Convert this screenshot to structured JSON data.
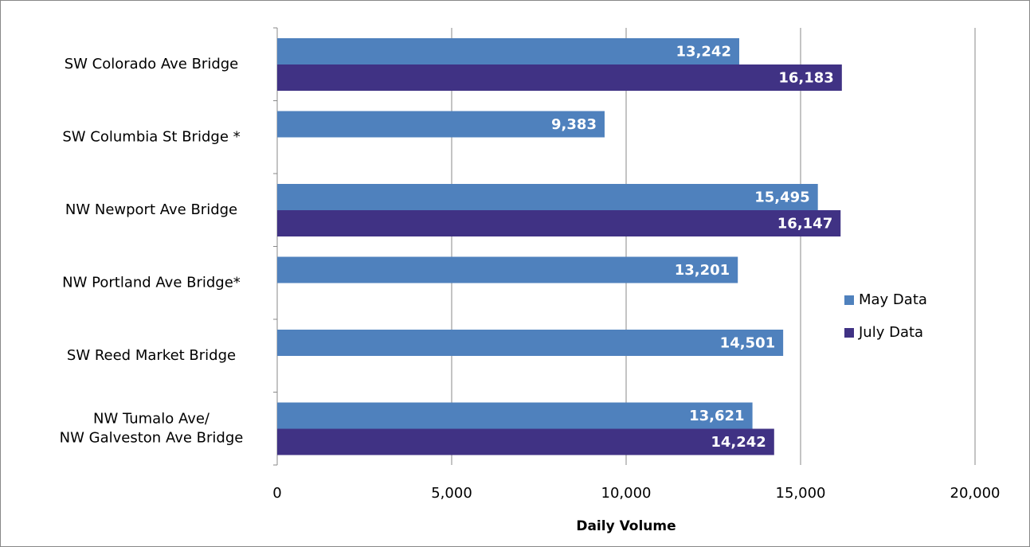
{
  "chart_data": {
    "type": "bar",
    "orientation": "horizontal",
    "x_label": "Daily Volume",
    "categories": [
      "SW Colorado Ave Bridge",
      "SW Columbia St Bridge *",
      "NW Newport Ave Bridge",
      "NW Portland Ave Bridge*",
      "SW Reed Market Bridge",
      "NW Tumalo Ave/\nNW Galveston Ave Bridge"
    ],
    "series": [
      {
        "name": "May Data",
        "color": "#4f81bd",
        "values": [
          13242,
          9383,
          15495,
          13201,
          14501,
          13621
        ],
        "value_labels": [
          "13,242",
          "9,383",
          "15,495",
          "13,201",
          "14,501",
          "13,621"
        ]
      },
      {
        "name": "July Data",
        "color": "#403284",
        "values": [
          16183,
          null,
          16147,
          null,
          null,
          14242
        ],
        "value_labels": [
          "16,183",
          null,
          "16,147",
          null,
          null,
          "14,242"
        ]
      }
    ],
    "xlim": [
      0,
      20000
    ],
    "xticks": [
      0,
      {
        "value": 5000,
        "label": "5,000"
      },
      {
        "value": 10000,
        "label": "10,000"
      },
      {
        "value": 15000,
        "label": "15,000"
      },
      {
        "value": 20000,
        "label": "20,000"
      }
    ],
    "grid": true,
    "legend": "right"
  }
}
